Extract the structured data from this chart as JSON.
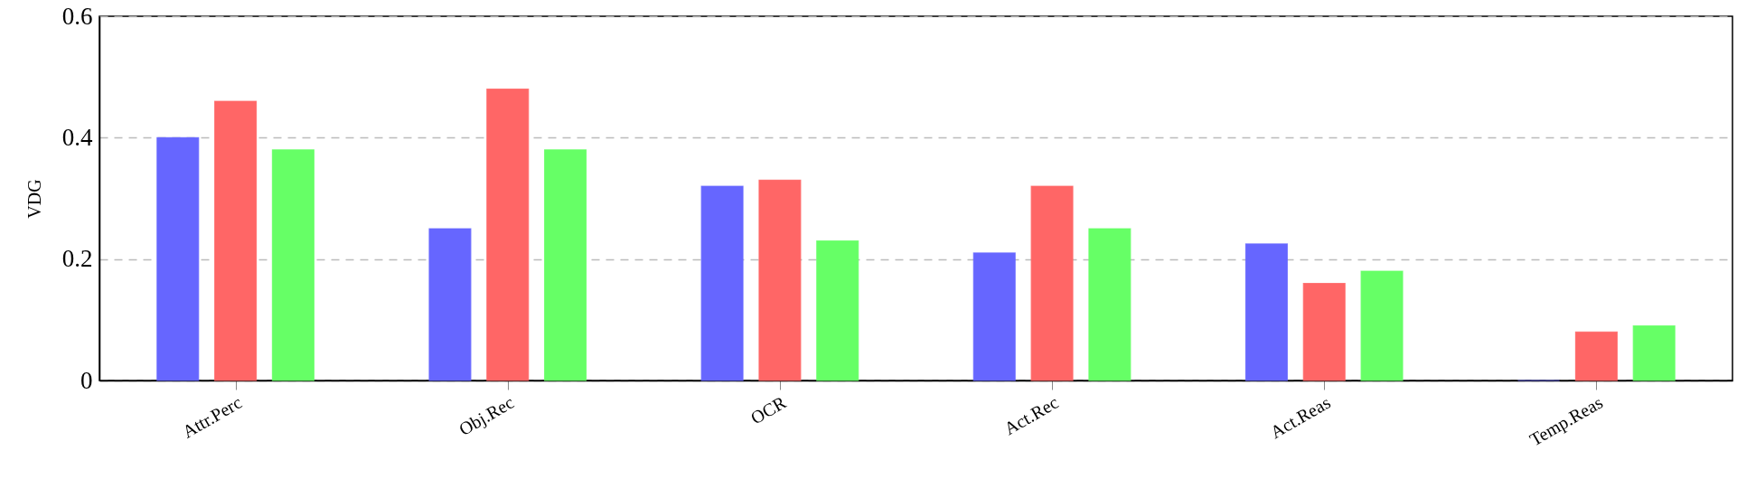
{
  "chart_data": {
    "type": "bar",
    "ylabel": "VDG",
    "categories": [
      "Attr.Perc",
      "Obj.Rec",
      "OCR",
      "Act.Rec",
      "Act.Reas",
      "Temp.Reas"
    ],
    "series": [
      {
        "color": "#6666ff",
        "values": [
          0.4,
          0.25,
          0.32,
          0.21,
          0.225,
          0
        ]
      },
      {
        "color": "#ff6666",
        "values": [
          0.46,
          0.48,
          0.33,
          0.32,
          0.16,
          0.08
        ]
      },
      {
        "color": "#66ff66",
        "values": [
          0.38,
          0.38,
          0.23,
          0.25,
          0.18,
          0.09
        ]
      }
    ],
    "ylim": [
      0,
      0.6
    ],
    "yticks": [
      0,
      0.2,
      0.4,
      0.6
    ],
    "grid": "y"
  }
}
